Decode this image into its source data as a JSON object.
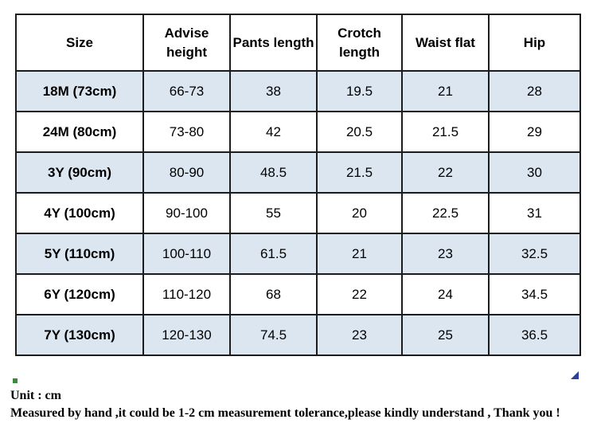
{
  "table": {
    "columns": [
      "Size",
      "Advise height",
      "Pants length",
      "Crotch length",
      "Waist flat",
      "Hip"
    ],
    "rows": [
      {
        "size": "18M (73cm)",
        "values": [
          "66-73",
          "38",
          "19.5",
          "21",
          "28"
        ],
        "highlight": true
      },
      {
        "size": "24M (80cm)",
        "values": [
          "73-80",
          "42",
          "20.5",
          "21.5",
          "29"
        ],
        "highlight": false
      },
      {
        "size": "3Y (90cm)",
        "values": [
          "80-90",
          "48.5",
          "21.5",
          "22",
          "30"
        ],
        "highlight": true
      },
      {
        "size": "4Y (100cm)",
        "values": [
          "90-100",
          "55",
          "20",
          "22.5",
          "31"
        ],
        "highlight": false
      },
      {
        "size": "5Y (110cm)",
        "values": [
          "100-110",
          "61.5",
          "21",
          "23",
          "32.5"
        ],
        "highlight": true
      },
      {
        "size": "6Y (120cm)",
        "values": [
          "110-120",
          "68",
          "22",
          "24",
          "34.5"
        ],
        "highlight": false
      },
      {
        "size": "7Y (130cm)",
        "values": [
          "120-130",
          "74.5",
          "23",
          "25",
          "36.5"
        ],
        "highlight": true
      }
    ],
    "colors": {
      "highlight_row_bg": "#dce6f1",
      "border": "#1c1c1c",
      "text": "#000000"
    }
  },
  "notes": {
    "unit_line": "Unit : cm",
    "tolerance_line": "Measured by hand ,it could be 1-2 cm measurement tolerance,please kindly understand , Thank you !"
  },
  "artifacts": {
    "fill_handle_color": "#3a8a3a",
    "corner_triangle_color": "#2a3f9f"
  }
}
